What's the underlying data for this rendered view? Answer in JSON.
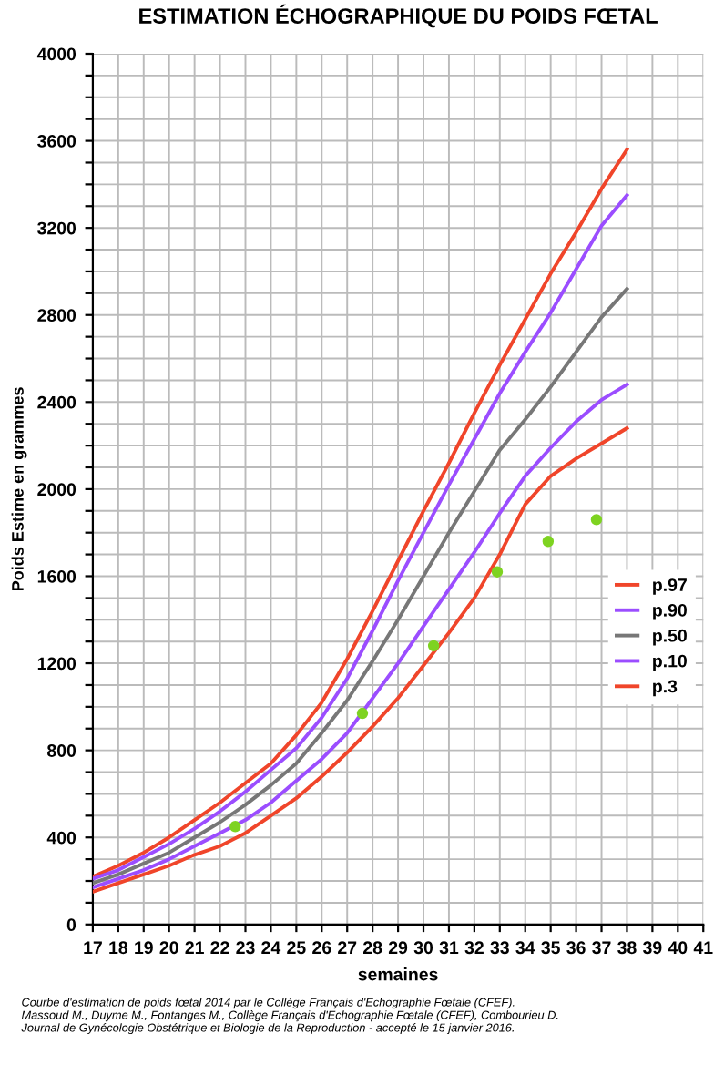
{
  "chart_data": {
    "type": "line",
    "title": "ESTIMATION ÉCHOGRAPHIQUE DU POIDS FŒTAL",
    "xlabel": "semaines",
    "ylabel": "Poids Estime en grammes",
    "x": [
      17,
      18,
      19,
      20,
      21,
      22,
      23,
      24,
      25,
      26,
      27,
      28,
      29,
      30,
      31,
      32,
      33,
      34,
      35,
      36,
      37,
      38
    ],
    "series": [
      {
        "name": "p.97",
        "color": "#f0452a",
        "values": [
          220,
          270,
          330,
          400,
          480,
          560,
          650,
          740,
          870,
          1020,
          1220,
          1440,
          1670,
          1900,
          2120,
          2350,
          2570,
          2780,
          2990,
          3180,
          3380,
          3560
        ]
      },
      {
        "name": "p.90",
        "color": "#9b4dff",
        "values": [
          210,
          250,
          310,
          370,
          440,
          520,
          610,
          710,
          810,
          950,
          1130,
          1350,
          1580,
          1800,
          2020,
          2230,
          2440,
          2630,
          2810,
          3010,
          3210,
          3350
        ]
      },
      {
        "name": "p.50",
        "color": "#777777",
        "values": [
          190,
          230,
          280,
          330,
          400,
          470,
          550,
          640,
          740,
          880,
          1030,
          1210,
          1400,
          1600,
          1800,
          1990,
          2180,
          2320,
          2470,
          2630,
          2790,
          2920
        ]
      },
      {
        "name": "p.10",
        "color": "#9b4dff",
        "values": [
          170,
          210,
          250,
          300,
          360,
          420,
          480,
          560,
          660,
          760,
          880,
          1040,
          1200,
          1370,
          1540,
          1710,
          1890,
          2060,
          2190,
          2310,
          2410,
          2480
        ]
      },
      {
        "name": "p.3",
        "color": "#f0452a",
        "values": [
          150,
          190,
          230,
          270,
          320,
          360,
          420,
          500,
          580,
          680,
          790,
          910,
          1040,
          1190,
          1340,
          1500,
          1700,
          1930,
          2060,
          2140,
          2210,
          2280
        ]
      },
      {
        "type": "scatter",
        "marker": "circle",
        "color": "#7ed321",
        "x": [
          22.6,
          27.6,
          30.4,
          32.9,
          34.9,
          36.8
        ],
        "values": [
          450,
          970,
          1280,
          1620,
          1760,
          1860
        ]
      }
    ],
    "xlim": [
      17,
      41
    ],
    "xticks": [
      17,
      18,
      19,
      20,
      21,
      22,
      23,
      24,
      25,
      26,
      27,
      28,
      29,
      30,
      31,
      32,
      33,
      34,
      35,
      36,
      37,
      38,
      39,
      40,
      41
    ],
    "ylim": [
      0,
      4000
    ],
    "yticks": [
      0,
      {
        "value": 100,
        "label": null
      },
      {
        "value": 200,
        "label": null
      },
      {
        "value": 300,
        "label": null
      },
      400,
      {
        "value": 500,
        "label": null
      },
      {
        "value": 600,
        "label": null
      },
      {
        "value": 700,
        "label": null
      },
      800,
      {
        "value": 900,
        "label": null
      },
      {
        "value": 1000,
        "label": null
      },
      {
        "value": 1100,
        "label": null
      },
      1200,
      {
        "value": 1300,
        "label": null
      },
      {
        "value": 1400,
        "label": null
      },
      {
        "value": 1500,
        "label": null
      },
      1600,
      {
        "value": 1700,
        "label": null
      },
      {
        "value": 1800,
        "label": null
      },
      {
        "value": 1900,
        "label": null
      },
      2000,
      {
        "value": 2100,
        "label": null
      },
      {
        "value": 2200,
        "label": null
      },
      {
        "value": 2300,
        "label": null
      },
      2400,
      {
        "value": 2500,
        "label": null
      },
      {
        "value": 2600,
        "label": null
      },
      {
        "value": 2700,
        "label": null
      },
      2800,
      {
        "value": 2900,
        "label": null
      },
      {
        "value": 3000,
        "label": null
      },
      {
        "value": 3100,
        "label": null
      },
      3200,
      {
        "value": 3300,
        "label": null
      },
      {
        "value": 3400,
        "label": null
      },
      {
        "value": 3500,
        "label": null
      },
      3600,
      {
        "value": 3700,
        "label": null
      },
      {
        "value": 3800,
        "label": null
      },
      {
        "value": 3900,
        "label": null
      },
      4000
    ],
    "grid": true,
    "legend": "right",
    "marker": "none",
    "annotations": [
      "Courbe d'estimation de poids fœtal 2014 par le Collège Français d'Echographie Fœtale (CFEF).\nMassoud M., Duyme M., Fontanges M., Collège Français d'Echographie Fœtale (CFEF), Combourieu D.\nJournal de Gynécologie Obstétrique et Biologie de la Reproduction - accepté le 15 janvier 2016."
    ]
  }
}
